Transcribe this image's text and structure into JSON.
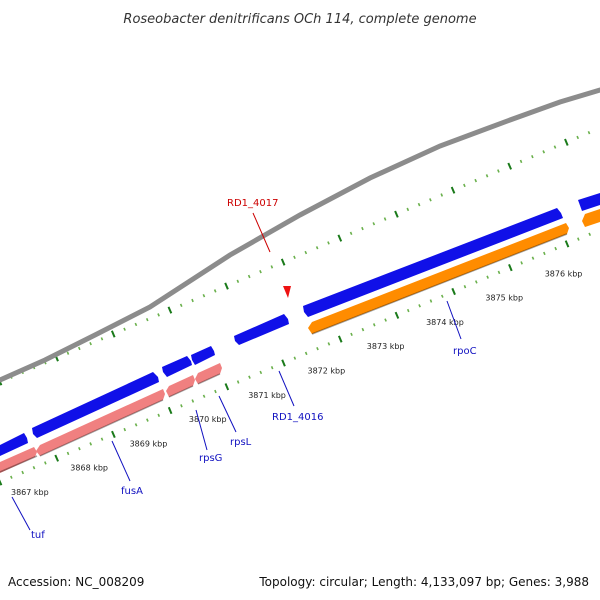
{
  "title": "Roseobacter denitrificans OCh 114, complete genome",
  "footer": {
    "accession": "Accession: NC_008209",
    "summary": "Topology: circular; Length: 4,133,097 bp; Genes: 3,988"
  },
  "colors": {
    "backbone": "#8c8c8c",
    "forward_gene": "#1010e8",
    "reverse_gene_rpoB": "#ff8c00",
    "reverse_gene_other": "#f08080",
    "tick_dark": "#1a7a1a",
    "tick_light": "#6ab04c",
    "label_forward": "#1010c0",
    "label_highlight": "#cc0000",
    "marker": "#ee1111"
  },
  "scale_ticks": [
    {
      "label": "3867 kbp",
      "pos": 3867
    },
    {
      "label": "3868 kbp",
      "pos": 3868
    },
    {
      "label": "3869 kbp",
      "pos": 3869
    },
    {
      "label": "3870 kbp",
      "pos": 3870
    },
    {
      "label": "3871 kbp",
      "pos": 3871
    },
    {
      "label": "3872 kbp",
      "pos": 3872
    },
    {
      "label": "3873 kbp",
      "pos": 3873
    },
    {
      "label": "3874 kbp",
      "pos": 3874
    },
    {
      "label": "3875 kbp",
      "pos": 3875
    },
    {
      "label": "3876 kbp",
      "pos": 3876
    }
  ],
  "genes": [
    {
      "label": "tuf",
      "strand": "forward"
    },
    {
      "label": "fusA",
      "strand": "forward"
    },
    {
      "label": "rpsG",
      "strand": "forward"
    },
    {
      "label": "rpsL",
      "strand": "forward"
    },
    {
      "label": "RD1_4016",
      "strand": "forward"
    },
    {
      "label": "rpoC",
      "strand": "forward"
    },
    {
      "label": "RD1_4017",
      "strand": "highlight"
    }
  ]
}
